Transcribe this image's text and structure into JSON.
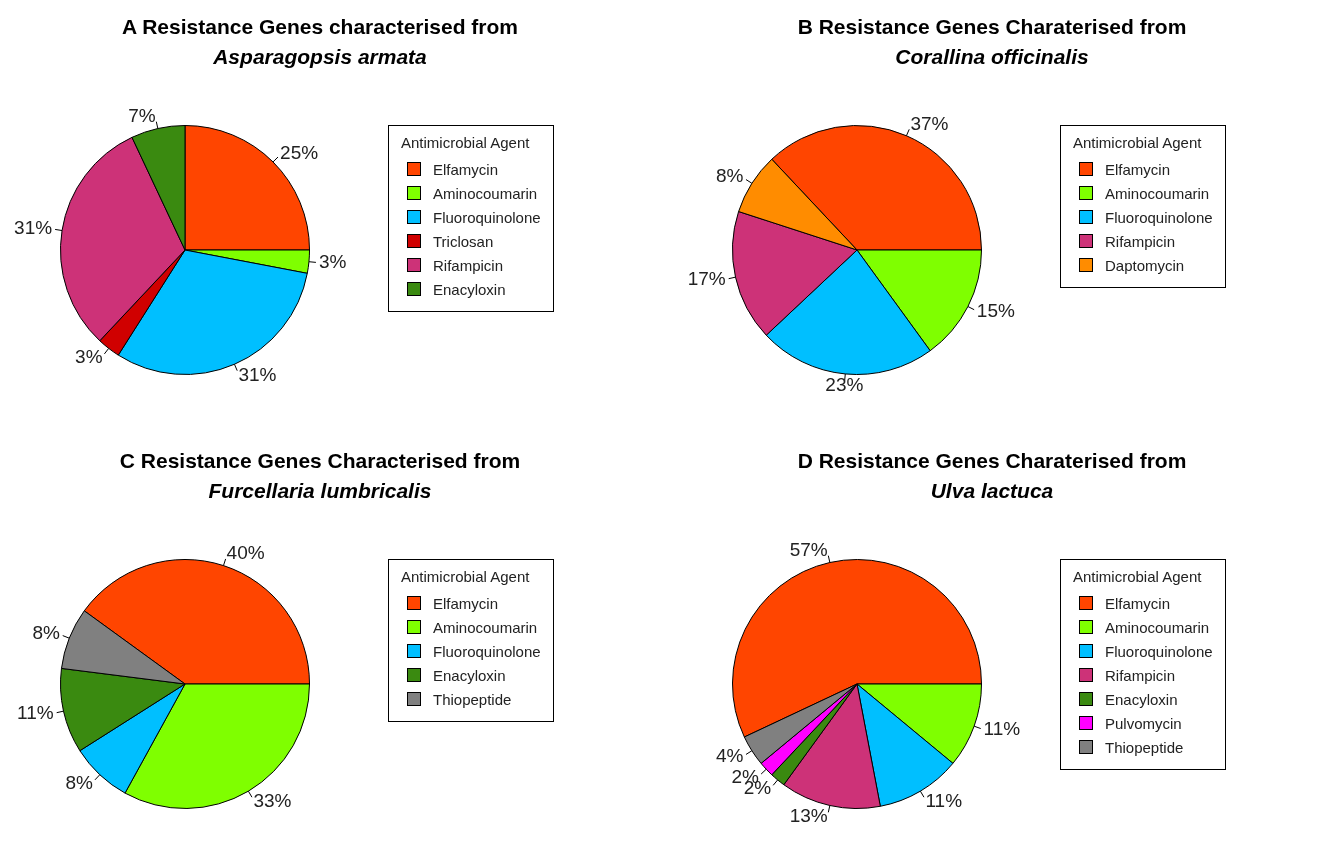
{
  "chart_data": [
    {
      "type": "pie",
      "title": "A Resistance Genes characterised from",
      "subtitle": "Asparagopsis armata",
      "legend_title": "Antimicrobial Agent",
      "legend": "right",
      "categories": [
        "Elfamycin",
        "Aminocoumarin",
        "Fluoroquinolone",
        "Triclosan",
        "Rifampicin",
        "Enacyloxin"
      ],
      "values": [
        25,
        3,
        31,
        3,
        31,
        7
      ],
      "value_labels": [
        "25%",
        "3%",
        "31%",
        "3%",
        "31%",
        "7%"
      ],
      "colors": [
        "#ff4500",
        "#7fff00",
        "#00bfff",
        "#d00000",
        "#cd3278",
        "#3a8a10"
      ]
    },
    {
      "type": "pie",
      "title": "B Resistance Genes Charaterised from",
      "subtitle": "Corallina officinalis",
      "legend_title": "Antimicrobial Agent",
      "legend": "right",
      "categories": [
        "Elfamycin",
        "Aminocoumarin",
        "Fluoroquinolone",
        "Rifampicin",
        "Daptomycin"
      ],
      "values": [
        37,
        15,
        23,
        17,
        8
      ],
      "value_labels": [
        "37%",
        "15%",
        "23%",
        "17%",
        "8%"
      ],
      "colors": [
        "#ff4500",
        "#7fff00",
        "#00bfff",
        "#cd3278",
        "#ff8c00"
      ]
    },
    {
      "type": "pie",
      "title": "C Resistance Genes Characterised from",
      "subtitle": "Furcellaria lumbricalis",
      "legend_title": "Antimicrobial Agent",
      "legend": "right",
      "categories": [
        "Elfamycin",
        "Aminocoumarin",
        "Fluoroquinolone",
        "Enacyloxin",
        "Thiopeptide"
      ],
      "values": [
        40,
        33,
        8,
        11,
        8
      ],
      "value_labels": [
        "40%",
        "33%",
        "8%",
        "11%",
        "8%"
      ],
      "colors": [
        "#ff4500",
        "#7fff00",
        "#00bfff",
        "#3a8a10",
        "#808080"
      ]
    },
    {
      "type": "pie",
      "title": "D Resistance Genes Charaterised from",
      "subtitle": "Ulva lactuca",
      "legend_title": "Antimicrobial Agent",
      "legend": "right",
      "categories": [
        "Elfamycin",
        "Aminocoumarin",
        "Fluoroquinolone",
        "Rifampicin",
        "Enacyloxin",
        "Pulvomycin",
        "Thiopeptide"
      ],
      "values": [
        57,
        11,
        11,
        13,
        2,
        2,
        4
      ],
      "value_labels": [
        "57%",
        "11%",
        "11%",
        "13%",
        "2%",
        "2%",
        "4%"
      ],
      "colors": [
        "#ff4500",
        "#7fff00",
        "#00bfff",
        "#cd3278",
        "#3a8a10",
        "#ff00ff",
        "#808080"
      ]
    }
  ]
}
